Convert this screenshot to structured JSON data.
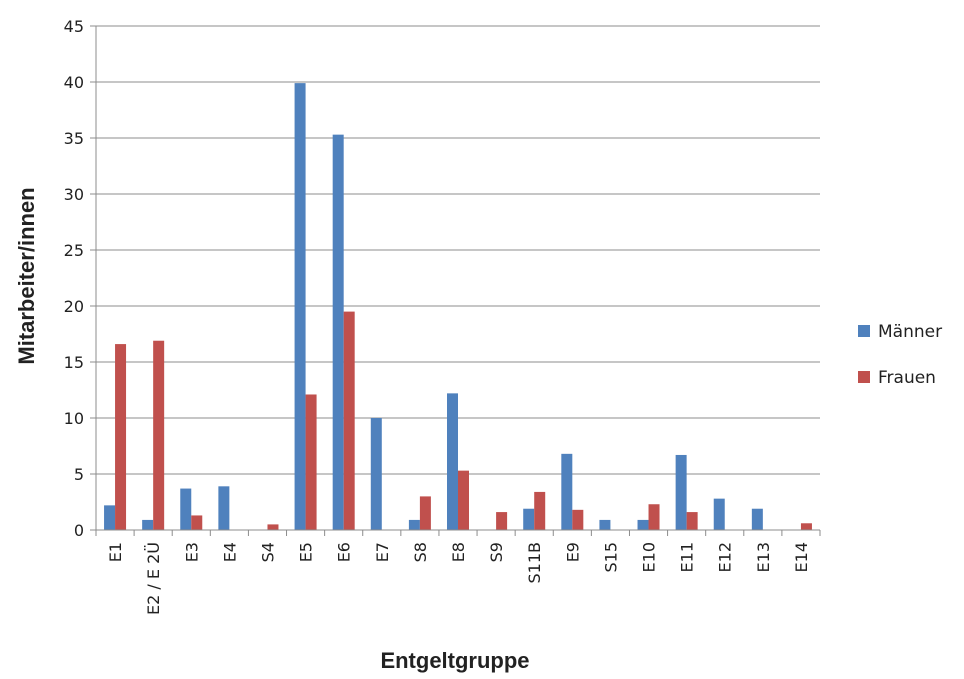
{
  "chart_data": {
    "type": "bar",
    "xlabel": "Entgeltgruppe",
    "ylabel": "Mitarbeiter/innen",
    "ylim": [
      0,
      45
    ],
    "yticks": [
      0,
      5,
      10,
      15,
      20,
      25,
      30,
      35,
      40,
      45
    ],
    "grid": true,
    "legend_position": "right",
    "categories": [
      "E1",
      "E2 / E 2Ü",
      "E3",
      "E4",
      "S4",
      "E5",
      "E6",
      "E7",
      "S8",
      "E8",
      "S9",
      "S11B",
      "E9",
      "S15",
      "E10",
      "E11",
      "E12",
      "E13",
      "E14"
    ],
    "series": [
      {
        "name": "Männer",
        "color": "#4f81bd",
        "values": [
          2.2,
          0.9,
          3.7,
          3.9,
          0,
          39.9,
          35.3,
          10,
          0.9,
          12.2,
          0,
          1.9,
          6.8,
          0.9,
          0.9,
          6.7,
          2.8,
          1.9,
          0
        ]
      },
      {
        "name": "Frauen",
        "color": "#c0504d",
        "values": [
          16.6,
          16.9,
          1.3,
          0,
          0.5,
          12.1,
          19.5,
          0,
          3,
          5.3,
          1.6,
          3.4,
          1.8,
          0,
          2.3,
          1.6,
          0,
          0,
          0.6
        ]
      }
    ]
  }
}
